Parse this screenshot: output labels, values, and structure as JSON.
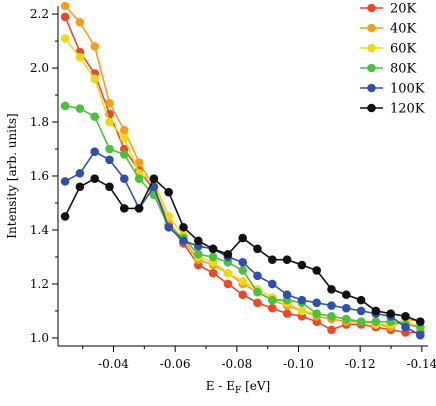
{
  "chart_data": {
    "type": "line",
    "title": "",
    "xlabel_main": "E - E",
    "xlabel_sub": "F",
    "xlabel_unit": " [eV]",
    "ylabel": "Intensity [arb. units]",
    "xlim": [
      -0.022,
      -0.142
    ],
    "ylim": [
      0.97,
      2.23
    ],
    "xticks": [
      -0.04,
      -0.06,
      -0.08,
      -0.1,
      -0.12,
      -0.14
    ],
    "xtick_labels": [
      "-0.04",
      "-0.06",
      "-0.08",
      "-0.10",
      "-0.12",
      "-0.14"
    ],
    "yticks": [
      1.0,
      1.2,
      1.4,
      1.6,
      1.8,
      2.0,
      2.2
    ],
    "ytick_labels": [
      "1.0",
      "1.2",
      "1.4",
      "1.6",
      "1.8",
      "2.0",
      "2.2"
    ],
    "grid": false,
    "legend_position": "top-right",
    "x": [
      -0.0243,
      -0.0291,
      -0.0339,
      -0.0387,
      -0.0435,
      -0.0483,
      -0.0531,
      -0.0579,
      -0.0627,
      -0.0675,
      -0.0723,
      -0.0771,
      -0.0819,
      -0.0867,
      -0.0915,
      -0.0963,
      -0.1011,
      -0.1059,
      -0.1107,
      -0.1155,
      -0.1203,
      -0.1251,
      -0.1299,
      -0.1347,
      -0.1395
    ],
    "series": [
      {
        "name": "20K",
        "color": "#e84a2a",
        "values": [
          2.19,
          2.06,
          1.98,
          1.83,
          1.7,
          1.62,
          1.55,
          1.42,
          1.35,
          1.27,
          1.24,
          1.2,
          1.16,
          1.13,
          1.11,
          1.09,
          1.08,
          1.06,
          1.03,
          1.05,
          1.05,
          1.04,
          1.03,
          1.02,
          1.02
        ]
      },
      {
        "name": "40K",
        "color": "#f0a020",
        "values": [
          2.23,
          2.17,
          2.08,
          1.87,
          1.77,
          1.65,
          1.56,
          1.43,
          1.36,
          1.29,
          1.27,
          1.24,
          1.2,
          1.17,
          1.14,
          1.12,
          1.1,
          1.08,
          1.07,
          1.06,
          1.06,
          1.05,
          1.04,
          1.07,
          1.06
        ]
      },
      {
        "name": "60K",
        "color": "#f0d818",
        "values": [
          2.11,
          2.04,
          1.96,
          1.8,
          1.74,
          1.61,
          1.58,
          1.45,
          1.38,
          1.3,
          1.28,
          1.24,
          1.21,
          1.18,
          1.15,
          1.13,
          1.1,
          1.09,
          1.08,
          1.07,
          1.06,
          1.05,
          1.05,
          1.06,
          1.04
        ]
      },
      {
        "name": "80K",
        "color": "#4cc23c",
        "values": [
          1.86,
          1.85,
          1.82,
          1.7,
          1.68,
          1.59,
          1.53,
          1.41,
          1.37,
          1.31,
          1.3,
          1.28,
          1.25,
          1.17,
          1.14,
          1.14,
          1.13,
          1.09,
          1.08,
          1.07,
          1.06,
          1.06,
          1.06,
          1.05,
          1.04
        ]
      },
      {
        "name": "100K",
        "color": "#3050b0",
        "values": [
          1.58,
          1.61,
          1.69,
          1.66,
          1.59,
          1.48,
          1.56,
          1.41,
          1.36,
          1.34,
          1.33,
          1.3,
          1.28,
          1.23,
          1.2,
          1.16,
          1.14,
          1.13,
          1.12,
          1.11,
          1.1,
          1.09,
          1.08,
          1.04,
          1.01
        ]
      },
      {
        "name": "120K",
        "color": "#111111",
        "values": [
          1.45,
          1.56,
          1.59,
          1.56,
          1.48,
          1.48,
          1.59,
          1.54,
          1.41,
          1.36,
          1.33,
          1.31,
          1.37,
          1.33,
          1.29,
          1.29,
          1.27,
          1.25,
          1.18,
          1.16,
          1.14,
          1.1,
          1.09,
          1.08,
          1.06
        ]
      }
    ]
  }
}
